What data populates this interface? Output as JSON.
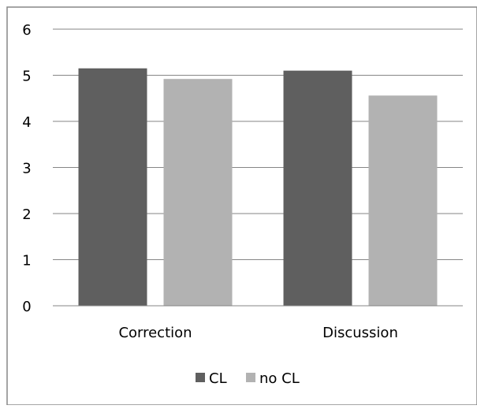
{
  "chart_data": {
    "type": "bar",
    "categories": [
      "Correction",
      "Discussion"
    ],
    "series": [
      {
        "name": "CL",
        "values": [
          5.15,
          5.1
        ],
        "color": "#5f5f5f"
      },
      {
        "name": "no CL",
        "values": [
          4.92,
          4.56
        ],
        "color": "#b2b2b2"
      }
    ],
    "ylim": [
      0,
      6
    ],
    "yticks": [
      "0",
      "1",
      "2",
      "3",
      "4",
      "5",
      "6"
    ],
    "grid": true,
    "legend_position": "bottom",
    "title": "",
    "xlabel": "",
    "ylabel": ""
  }
}
